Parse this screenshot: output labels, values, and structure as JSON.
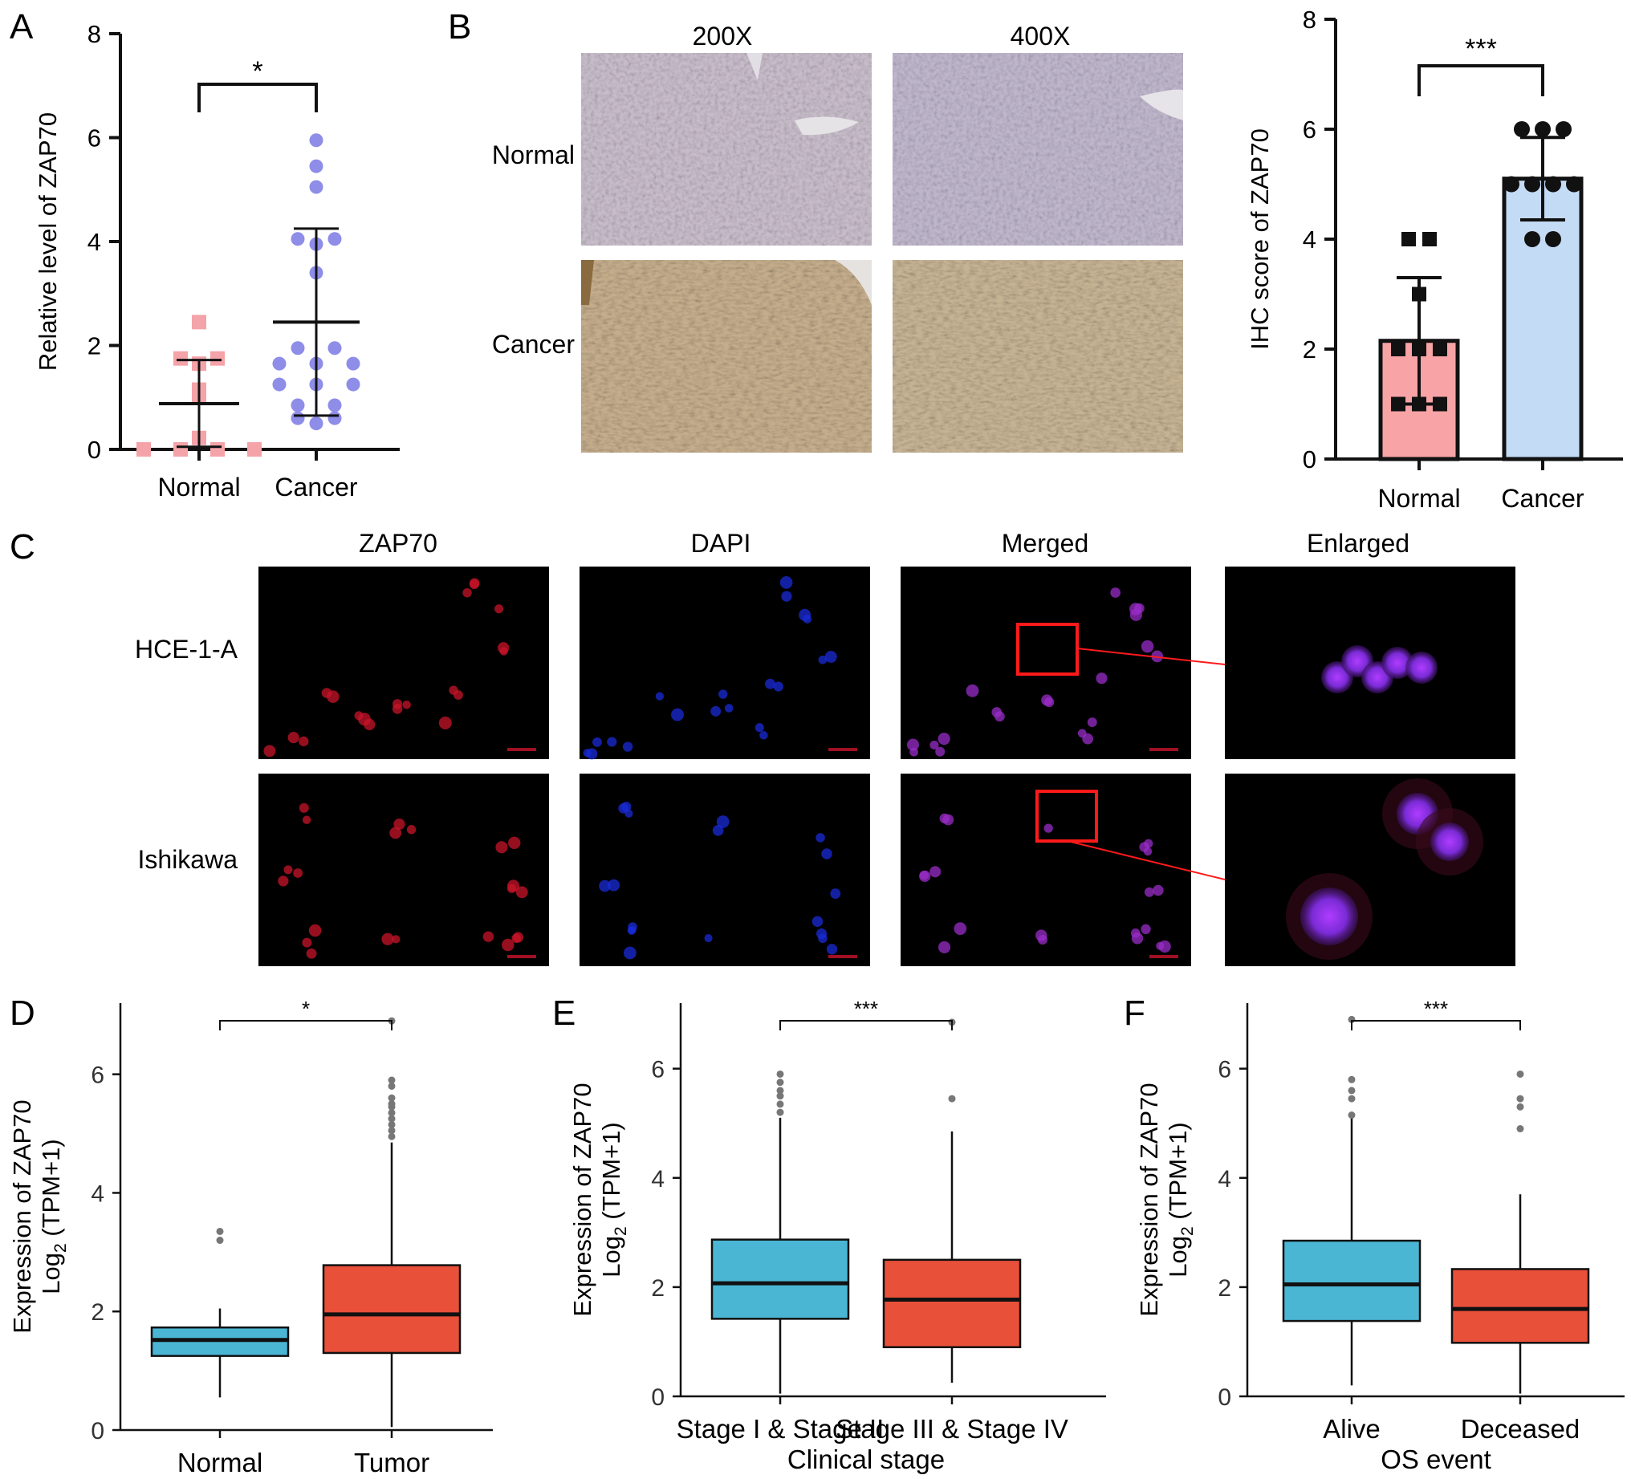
{
  "panels": {
    "A": {
      "letter": "A",
      "chart_data": {
        "type": "scatter",
        "categories": [
          "Normal",
          "Cancer"
        ],
        "ylabel": "Relative level of ZAP70",
        "ylim": [
          0,
          8
        ],
        "yticks": [
          "0",
          "2",
          "4",
          "6",
          "8"
        ],
        "significance": "*",
        "series": [
          {
            "category": "Normal",
            "marker": "square",
            "color": "#f4a3a8",
            "values": [
              2.45,
              1.75,
              1.75,
              1.65,
              1.15,
              1.0,
              0.22,
              0.0,
              0.0,
              0.0,
              0.0
            ],
            "mean": 0.88,
            "sd_low": 0.05,
            "sd_high": 1.72
          },
          {
            "category": "Cancer",
            "marker": "circle",
            "color": "#8e8de8",
            "values": [
              5.95,
              5.45,
              5.05,
              4.05,
              4.05,
              3.95,
              3.4,
              1.95,
              1.95,
              1.65,
              1.65,
              1.65,
              1.25,
              1.25,
              1.25,
              0.85,
              0.85,
              0.6,
              0.6,
              0.5
            ],
            "mean": 2.45,
            "sd_low": 0.65,
            "sd_high": 4.25
          }
        ]
      }
    },
    "B": {
      "letter": "B",
      "col_labels": [
        "200X",
        "400X"
      ],
      "row_labels": [
        "Normal",
        "Cancer"
      ],
      "chart_data": {
        "type": "bar",
        "categories": [
          "Normal",
          "Cancer"
        ],
        "ylabel": "IHC score of ZAP70",
        "ylim": [
          0,
          8
        ],
        "yticks": [
          "0",
          "2",
          "4",
          "6",
          "8"
        ],
        "significance": "***",
        "colors": [
          "#f8a3a6",
          "#c4dbf6"
        ],
        "values": [
          2.15,
          5.1
        ],
        "err_low": [
          1.0,
          4.35
        ],
        "err_high": [
          3.3,
          5.85
        ],
        "points": [
          {
            "marker": "square",
            "values": [
              4,
              4,
              3,
              2,
              2,
              2,
              1,
              1,
              1
            ]
          },
          {
            "marker": "circle",
            "values": [
              6,
              6,
              6,
              5,
              5,
              5,
              5,
              4,
              4
            ]
          }
        ]
      }
    },
    "C": {
      "letter": "C",
      "col_labels": [
        "ZAP70",
        "DAPI",
        "Merged",
        "Enlarged"
      ],
      "row_labels": [
        "HCE-1-A",
        "Ishikawa"
      ]
    },
    "D": {
      "letter": "D",
      "chart_data": {
        "type": "box",
        "categories": [
          "Normal",
          "Tumor"
        ],
        "xlabel": "",
        "ylabel_line1": "Expression of ZAP70",
        "ylabel_line2": "Log",
        "ylabel_sub": "2",
        "ylabel_line2_tail": " (TPM+1)",
        "ylim": [
          0,
          7.2
        ],
        "yticks": [
          "0",
          "2",
          "4",
          "6"
        ],
        "significance": "*",
        "colors": [
          "#4ab6d4",
          "#e8503a"
        ],
        "boxes": [
          {
            "min": 0.55,
            "q1": 1.25,
            "median": 1.52,
            "q3": 1.73,
            "max": 2.05,
            "outliers": [
              3.2,
              3.35
            ]
          },
          {
            "min": 0.05,
            "q1": 1.3,
            "median": 1.95,
            "q3": 2.78,
            "max": 4.85,
            "outliers": [
              4.95,
              5.05,
              5.15,
              5.25,
              5.35,
              5.45,
              5.5,
              5.6,
              5.8,
              5.9,
              6.9
            ]
          }
        ]
      }
    },
    "E": {
      "letter": "E",
      "chart_data": {
        "type": "box",
        "categories": [
          "Stage I & Stage II",
          "Stage III & Stage IV"
        ],
        "xlabel": "Clinical stage",
        "ylabel_line1": "Expression of ZAP70",
        "ylabel_line2": "Log",
        "ylabel_sub": "2",
        "ylabel_line2_tail": " (TPM+1)",
        "ylim": [
          0,
          7.2
        ],
        "yticks": [
          "0",
          "2",
          "4",
          "6"
        ],
        "significance": "***",
        "colors": [
          "#4ab6d4",
          "#e8503a"
        ],
        "boxes": [
          {
            "min": 0.05,
            "q1": 1.42,
            "median": 2.07,
            "q3": 2.87,
            "max": 5.1,
            "outliers": [
              5.2,
              5.35,
              5.5,
              5.6,
              5.75,
              5.9
            ]
          },
          {
            "min": 0.25,
            "q1": 0.9,
            "median": 1.77,
            "q3": 2.5,
            "max": 4.85,
            "outliers": [
              5.45,
              6.85
            ]
          }
        ]
      }
    },
    "F": {
      "letter": "F",
      "chart_data": {
        "type": "box",
        "categories": [
          "Alive",
          "Deceased"
        ],
        "xlabel": "OS event",
        "ylabel_line1": "Expression of ZAP70",
        "ylabel_line2": "Log",
        "ylabel_sub": "2",
        "ylabel_line2_tail": " (TPM+1)",
        "ylim": [
          0,
          7.2
        ],
        "yticks": [
          "0",
          "2",
          "4",
          "6"
        ],
        "significance": "***",
        "colors": [
          "#4ab6d4",
          "#e8503a"
        ],
        "boxes": [
          {
            "min": 0.2,
            "q1": 1.38,
            "median": 2.05,
            "q3": 2.85,
            "max": 5.1,
            "outliers": [
              5.15,
              5.45,
              5.6,
              5.8,
              6.9
            ]
          },
          {
            "min": 0.05,
            "q1": 0.98,
            "median": 1.6,
            "q3": 2.33,
            "max": 3.7,
            "outliers": [
              4.9,
              5.3,
              5.45,
              5.9
            ]
          }
        ]
      }
    }
  }
}
